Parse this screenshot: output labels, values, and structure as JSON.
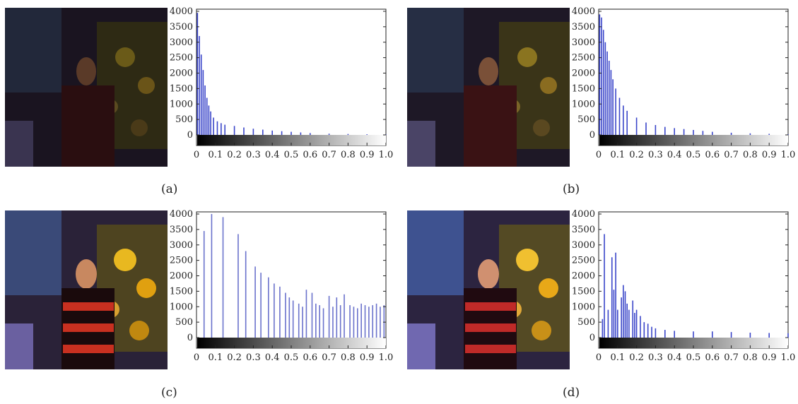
{
  "panels": [
    {
      "id": "a",
      "caption": "(a)"
    },
    {
      "id": "b",
      "caption": "(b)"
    },
    {
      "id": "c",
      "caption": "(c)"
    },
    {
      "id": "d",
      "caption": "(d)"
    }
  ],
  "chart_data": [
    {
      "panel": "a",
      "type": "bar",
      "ylim": [
        0,
        4000
      ],
      "xlim": [
        0,
        1.0
      ],
      "yticks": [
        "0",
        "500",
        "1000",
        "1500",
        "2000",
        "2500",
        "3000",
        "3500",
        "4000"
      ],
      "xticks": [
        "0",
        "0.1",
        "0.2",
        "0.3",
        "0.4",
        "0.5",
        "0.6",
        "0.7",
        "0.8",
        "0.9",
        "1.0"
      ],
      "grid": false,
      "bar_color": "#3a45c9",
      "x": [
        0.005,
        0.015,
        0.025,
        0.035,
        0.045,
        0.055,
        0.065,
        0.075,
        0.09,
        0.11,
        0.13,
        0.15,
        0.2,
        0.25,
        0.3,
        0.35,
        0.4,
        0.45,
        0.5,
        0.55,
        0.6,
        0.7,
        0.8,
        0.9,
        1.0
      ],
      "values": [
        3950,
        3200,
        2600,
        2100,
        1600,
        1200,
        950,
        760,
        560,
        440,
        380,
        330,
        290,
        240,
        200,
        170,
        140,
        120,
        100,
        80,
        60,
        40,
        30,
        20,
        15
      ]
    },
    {
      "panel": "b",
      "type": "bar",
      "ylim": [
        0,
        4000
      ],
      "xlim": [
        0,
        1.0
      ],
      "yticks": [
        "0",
        "500",
        "1000",
        "1500",
        "2000",
        "2500",
        "3000",
        "3500",
        "4000"
      ],
      "xticks": [
        "0",
        "0.1",
        "0.2",
        "0.3",
        "0.4",
        "0.5",
        "0.6",
        "0.7",
        "0.8",
        "0.9",
        "1.0"
      ],
      "grid": false,
      "bar_color": "#3a45c9",
      "x": [
        0.005,
        0.015,
        0.025,
        0.035,
        0.045,
        0.055,
        0.065,
        0.075,
        0.09,
        0.11,
        0.13,
        0.15,
        0.2,
        0.25,
        0.3,
        0.35,
        0.4,
        0.45,
        0.5,
        0.55,
        0.6,
        0.7,
        0.8,
        0.9,
        1.0
      ],
      "values": [
        3900,
        3800,
        3400,
        3000,
        2700,
        2400,
        2100,
        1800,
        1500,
        1200,
        950,
        780,
        560,
        400,
        320,
        260,
        220,
        190,
        160,
        130,
        100,
        70,
        50,
        35,
        20
      ]
    },
    {
      "panel": "c",
      "type": "bar",
      "ylim": [
        0,
        4000
      ],
      "xlim": [
        0,
        1.0
      ],
      "yticks": [
        "0",
        "500",
        "1000",
        "1500",
        "2000",
        "2500",
        "3000",
        "3500",
        "4000"
      ],
      "xticks": [
        "0",
        "0.1",
        "0.2",
        "0.3",
        "0.4",
        "0.5",
        "0.6",
        "0.7",
        "0.8",
        "0.9",
        "1.0"
      ],
      "grid": false,
      "bar_color": "#6a72cc",
      "x": [
        0.04,
        0.08,
        0.14,
        0.22,
        0.26,
        0.31,
        0.34,
        0.38,
        0.41,
        0.44,
        0.47,
        0.49,
        0.51,
        0.54,
        0.56,
        0.58,
        0.61,
        0.63,
        0.65,
        0.67,
        0.7,
        0.72,
        0.74,
        0.76,
        0.78,
        0.81,
        0.83,
        0.85,
        0.87,
        0.89,
        0.91,
        0.93,
        0.95,
        0.97,
        0.99
      ],
      "values": [
        3450,
        4000,
        3900,
        3350,
        2800,
        2300,
        2100,
        1950,
        1750,
        1650,
        1450,
        1300,
        1200,
        1100,
        1000,
        1550,
        1450,
        1100,
        1050,
        950,
        1350,
        1000,
        1300,
        1050,
        1400,
        1050,
        1000,
        950,
        1100,
        1050,
        1000,
        1050,
        1100,
        1000,
        1050
      ]
    },
    {
      "panel": "d",
      "type": "bar",
      "ylim": [
        0,
        4000
      ],
      "xlim": [
        0,
        1.0
      ],
      "yticks": [
        "0",
        "500",
        "1000",
        "1500",
        "2000",
        "2500",
        "3000",
        "3500",
        "4000"
      ],
      "xticks": [
        "0",
        "0.1",
        "0.2",
        "0.3",
        "0.4",
        "0.5",
        "0.6",
        "0.7",
        "0.8",
        "0.9",
        "1.0"
      ],
      "grid": false,
      "bar_color": "#3a45c9",
      "x": [
        0.02,
        0.03,
        0.05,
        0.07,
        0.08,
        0.09,
        0.1,
        0.12,
        0.13,
        0.14,
        0.15,
        0.16,
        0.18,
        0.19,
        0.2,
        0.22,
        0.24,
        0.26,
        0.28,
        0.3,
        0.35,
        0.4,
        0.5,
        0.6,
        0.7,
        0.8,
        0.9,
        1.0
      ],
      "values": [
        600,
        3350,
        900,
        2600,
        1550,
        2750,
        900,
        1300,
        1700,
        1500,
        1100,
        900,
        1200,
        800,
        900,
        700,
        500,
        450,
        350,
        300,
        250,
        220,
        200,
        200,
        180,
        160,
        150,
        140
      ]
    }
  ]
}
